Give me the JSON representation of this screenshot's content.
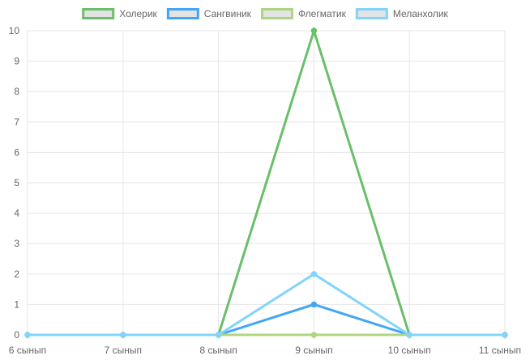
{
  "chart_data": {
    "type": "line",
    "categories": [
      "6 сынып",
      "7 сынып",
      "8 сынып",
      "9 сынып",
      "10 сынып",
      "11 сынып"
    ],
    "series": [
      {
        "name": "Холерик",
        "values": [
          0,
          0,
          0,
          10,
          0,
          0
        ],
        "color": "#6abf69",
        "fill": "#e3e3e3"
      },
      {
        "name": "Сангвиник",
        "values": [
          0,
          0,
          0,
          1,
          0,
          0
        ],
        "color": "#42a5f5",
        "fill": "#e3e3e3"
      },
      {
        "name": "Флегматик",
        "values": [
          0,
          0,
          0,
          0,
          0,
          0
        ],
        "color": "#aed581",
        "fill": "#e3e3e3"
      },
      {
        "name": "Меланхолик",
        "values": [
          0,
          0,
          0,
          2,
          0,
          0
        ],
        "color": "#81d4fa",
        "fill": "#e3e3e3"
      }
    ],
    "ylim": [
      0,
      10
    ],
    "yticks": [
      0,
      1,
      2,
      3,
      4,
      5,
      6,
      7,
      8,
      9,
      10
    ],
    "grid": true,
    "legend_position": "top"
  }
}
